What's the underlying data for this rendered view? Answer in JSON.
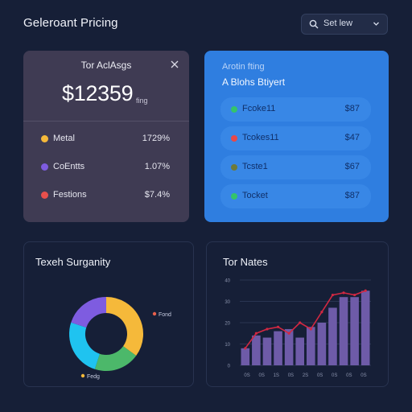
{
  "header": {
    "title": "Geleroant Pricing",
    "select_label": "Set lew"
  },
  "summary_card": {
    "title": "Tor AclAsgs",
    "amount": "$12359",
    "amount_suffix": "fing",
    "rows": [
      {
        "label": "Metal",
        "value": "1729%",
        "color": "#f5b93a"
      },
      {
        "label": "CoEntts",
        "value": "1.07%",
        "color": "#7e5ce0"
      },
      {
        "label": "Festions",
        "value": "$7.4%",
        "color": "#e8504c"
      }
    ]
  },
  "plan_card": {
    "title": "Arotin fting",
    "subtitle": "A Blohs Btiyert",
    "rows": [
      {
        "label": "Fcoke11",
        "value": "$87",
        "color": "#34c46b"
      },
      {
        "label": "Tcokes11",
        "value": "$47",
        "color": "#e84848"
      },
      {
        "label": "Tcste1",
        "value": "$67",
        "color": "#6e7a3a"
      },
      {
        "label": "Tocket",
        "value": "$87",
        "color": "#34c46b"
      }
    ]
  },
  "donut_panel": {
    "title": "Texeh Surganity",
    "legend_right": "Fond",
    "legend_bottom": "Fedg",
    "legend_right_color": "#e8604c",
    "legend_bottom_color": "#f5b93a"
  },
  "chart_panel": {
    "title": "Tor Nates",
    "y_ticks": [
      "40",
      "30",
      "20",
      "10",
      "0"
    ],
    "x_ticks": [
      "0S",
      "0S",
      "1S",
      "0S",
      "2S",
      "0S",
      "0S",
      "0S",
      "0S"
    ]
  },
  "chart_data": [
    {
      "type": "pie",
      "variant": "donut",
      "series": [
        {
          "value": 35,
          "color": "#f5b93a"
        },
        {
          "value": 20,
          "color": "#4cb86a"
        },
        {
          "value": 25,
          "color": "#1fc3f0"
        },
        {
          "value": 20,
          "color": "#7e5ce0"
        }
      ],
      "legend": [
        "Fond",
        "Fedg"
      ]
    },
    {
      "type": "bar",
      "title": "Tor Nates",
      "values": [
        8,
        14,
        13,
        16,
        17,
        13,
        18,
        20,
        27,
        32,
        32,
        35
      ],
      "line_values": [
        8,
        15,
        17,
        18,
        15,
        20,
        17,
        25,
        33,
        34,
        33,
        35
      ],
      "ylim": [
        0,
        40
      ],
      "bar_color": "#6e5ba8",
      "line_color": "#d22842"
    }
  ]
}
